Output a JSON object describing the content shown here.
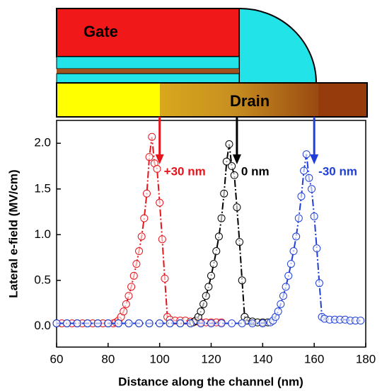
{
  "schematic": {
    "labels": [
      "Gate",
      "Drain"
    ]
  },
  "chart_data": {
    "type": "line",
    "xlabel": "Distance along the channel (nm)",
    "ylabel": "Lateral e-field (MV/cm)",
    "xlim": [
      60,
      180
    ],
    "ylim": [
      -0.23,
      2.25
    ],
    "xticks": [
      60,
      80,
      100,
      120,
      140,
      160,
      180
    ],
    "yticks": [
      {
        "value": 0,
        "label": "0.0"
      },
      0.5,
      {
        "value": 1,
        "label": "1.0"
      },
      1.5,
      {
        "value": 2,
        "label": "2.0"
      }
    ],
    "arrows": [
      {
        "x": 100,
        "label": "+30 nm",
        "color": "#e8141c"
      },
      {
        "x": 130,
        "label": "0 nm",
        "color": "#000000"
      },
      {
        "x": 160,
        "label": "-30 nm",
        "color": "#1f3fd8"
      }
    ],
    "series": [
      {
        "color": "#e8141c",
        "x": [
          62,
          64,
          66,
          68,
          70,
          72,
          74,
          76,
          78,
          80,
          82,
          83,
          84,
          85,
          86,
          87,
          88,
          89,
          90,
          91,
          92,
          93,
          94,
          95,
          96,
          97,
          98,
          99,
          100,
          101,
          102,
          103,
          104,
          106,
          108,
          110,
          112,
          114,
          116,
          118,
          120,
          122,
          124
        ],
        "values": [
          0.03,
          0.03,
          0.03,
          0.03,
          0.03,
          0.03,
          0.03,
          0.03,
          0.03,
          0.03,
          0.03,
          0.04,
          0.06,
          0.1,
          0.16,
          0.24,
          0.33,
          0.43,
          0.55,
          0.68,
          0.82,
          0.98,
          1.18,
          1.45,
          1.85,
          2.07,
          1.78,
          1.72,
          1.35,
          0.95,
          0.52,
          0.1,
          0.07,
          0.06,
          0.06,
          0.06,
          0.05,
          0.05,
          0.04,
          0.04,
          0.04,
          0.04,
          0.04
        ]
      },
      {
        "color": "#000000",
        "x": [
          60,
          64,
          68,
          72,
          76,
          80,
          84,
          88,
          92,
          96,
          100,
          104,
          108,
          112,
          113,
          114,
          115,
          116,
          117,
          118,
          119,
          120,
          121,
          122,
          123,
          124,
          125,
          126,
          127,
          128,
          129,
          130,
          131,
          132,
          133,
          134,
          136,
          138,
          140,
          142
        ],
        "values": [
          0.03,
          0.03,
          0.03,
          0.03,
          0.03,
          0.03,
          0.03,
          0.03,
          0.03,
          0.03,
          0.03,
          0.03,
          0.03,
          0.03,
          0.04,
          0.06,
          0.1,
          0.16,
          0.24,
          0.33,
          0.43,
          0.55,
          0.68,
          0.82,
          0.98,
          1.18,
          1.45,
          1.8,
          1.99,
          1.75,
          1.65,
          1.3,
          0.92,
          0.5,
          0.1,
          0.06,
          0.05,
          0.04,
          0.04,
          0.04
        ]
      },
      {
        "color": "#1f3fd8",
        "x": [
          60,
          64,
          68,
          72,
          76,
          80,
          84,
          88,
          92,
          96,
          100,
          104,
          108,
          112,
          116,
          120,
          124,
          128,
          132,
          136,
          140,
          143,
          144,
          145,
          146,
          147,
          148,
          149,
          150,
          151,
          152,
          153,
          154,
          155,
          156,
          157,
          158,
          159,
          160,
          161,
          162,
          163,
          164,
          166,
          168,
          170,
          172,
          174,
          176,
          178
        ],
        "values": [
          0.03,
          0.03,
          0.03,
          0.03,
          0.03,
          0.03,
          0.03,
          0.03,
          0.03,
          0.03,
          0.03,
          0.03,
          0.03,
          0.03,
          0.03,
          0.03,
          0.03,
          0.03,
          0.03,
          0.03,
          0.03,
          0.04,
          0.06,
          0.1,
          0.16,
          0.24,
          0.33,
          0.43,
          0.55,
          0.68,
          0.82,
          0.98,
          1.18,
          1.42,
          1.7,
          1.88,
          1.62,
          1.5,
          1.2,
          0.85,
          0.47,
          0.1,
          0.08,
          0.07,
          0.07,
          0.07,
          0.07,
          0.06,
          0.06,
          0.06
        ]
      }
    ]
  }
}
